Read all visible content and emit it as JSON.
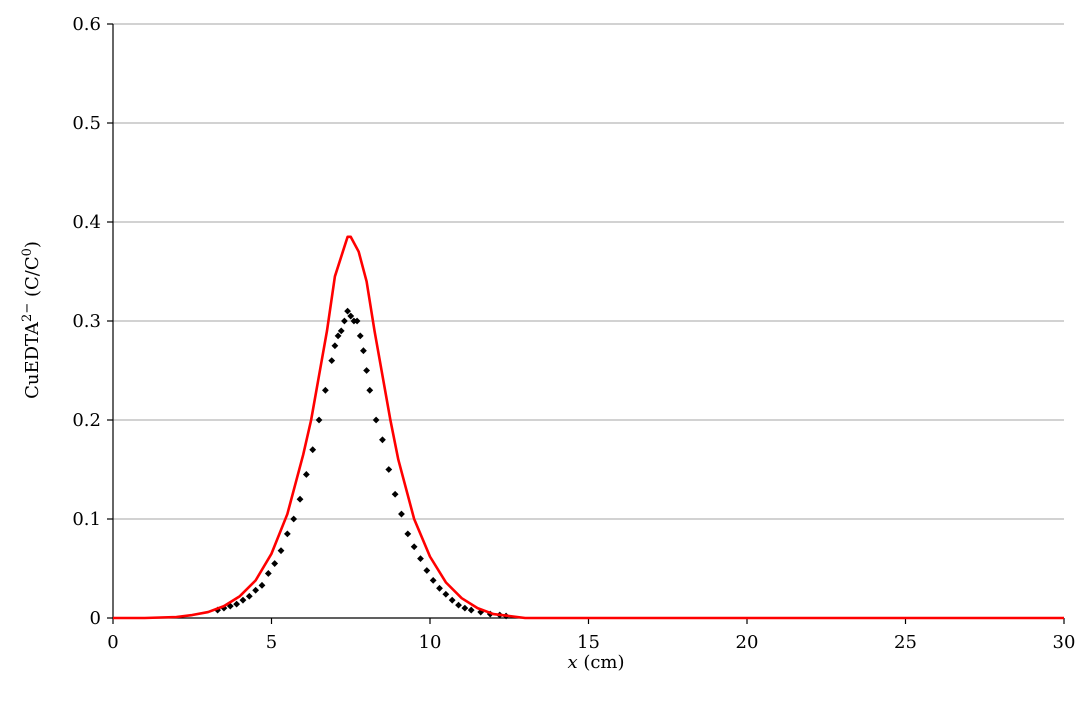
{
  "chart_data": {
    "type": "line",
    "xlabel_var": "x",
    "xlabel_unit": " (cm)",
    "ylabel_base": "CuEDTA",
    "ylabel_sup": "2−",
    "ylabel_mid": " (C/C",
    "ylabel_sup2": "0",
    "ylabel_end": ")",
    "xlim": [
      0,
      30
    ],
    "ylim": [
      0,
      0.6
    ],
    "x_ticks": [
      "0",
      "5",
      "10",
      "15",
      "20",
      "25",
      "30"
    ],
    "y_ticks": [
      "0",
      "0.1",
      "0.2",
      "0.3",
      "0.4",
      "0.5",
      "0.6"
    ],
    "grid": "horizontal",
    "legend": "none",
    "colors": {
      "line": "#ff0000",
      "markers": "#000000"
    },
    "series": [
      {
        "style": "red-line",
        "x": [
          0,
          1,
          2,
          2.5,
          3,
          3.5,
          4,
          4.5,
          5,
          5.5,
          6,
          6.25,
          6.5,
          6.75,
          7,
          7.25,
          7.4,
          7.5,
          7.75,
          8,
          8.25,
          8.5,
          8.75,
          9,
          9.5,
          10,
          10.5,
          11,
          11.5,
          12,
          12.5,
          13,
          14,
          30
        ],
        "y": [
          0,
          0,
          0.001,
          0.003,
          0.006,
          0.012,
          0.022,
          0.038,
          0.065,
          0.105,
          0.165,
          0.2,
          0.245,
          0.29,
          0.345,
          0.37,
          0.385,
          0.385,
          0.37,
          0.34,
          0.29,
          0.245,
          0.2,
          0.16,
          0.1,
          0.062,
          0.036,
          0.02,
          0.01,
          0.004,
          0.002,
          0,
          0,
          0
        ]
      },
      {
        "style": "black-diamonds",
        "x": [
          3.3,
          3.5,
          3.7,
          3.9,
          4.1,
          4.3,
          4.5,
          4.7,
          4.9,
          5.1,
          5.3,
          5.5,
          5.7,
          5.9,
          6.1,
          6.3,
          6.5,
          6.7,
          6.9,
          7.0,
          7.1,
          7.2,
          7.3,
          7.4,
          7.5,
          7.6,
          7.7,
          7.8,
          7.9,
          8.0,
          8.1,
          8.3,
          8.5,
          8.7,
          8.9,
          9.1,
          9.3,
          9.5,
          9.7,
          9.9,
          10.1,
          10.3,
          10.5,
          10.7,
          10.9,
          11.1,
          11.3,
          11.6,
          11.9,
          12.2,
          12.4
        ],
        "y": [
          0.008,
          0.01,
          0.012,
          0.014,
          0.018,
          0.022,
          0.028,
          0.033,
          0.045,
          0.055,
          0.068,
          0.085,
          0.1,
          0.12,
          0.145,
          0.17,
          0.2,
          0.23,
          0.26,
          0.275,
          0.285,
          0.29,
          0.3,
          0.31,
          0.305,
          0.3,
          0.3,
          0.285,
          0.27,
          0.25,
          0.23,
          0.2,
          0.18,
          0.15,
          0.125,
          0.105,
          0.085,
          0.072,
          0.06,
          0.048,
          0.038,
          0.03,
          0.024,
          0.018,
          0.013,
          0.01,
          0.008,
          0.006,
          0.004,
          0.003,
          0.002
        ]
      }
    ]
  }
}
